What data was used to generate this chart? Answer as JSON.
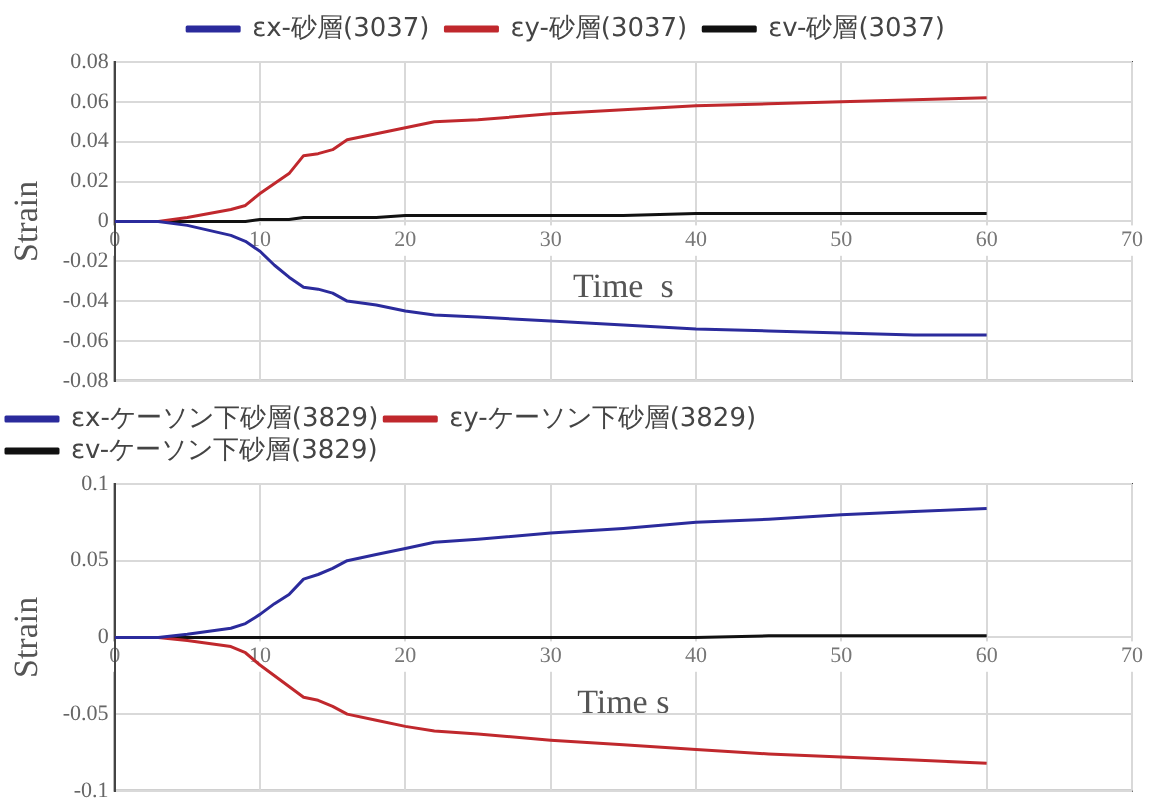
{
  "chart_data": [
    {
      "type": "line",
      "xlabel": "Time  s",
      "ylabel": "Strain",
      "xlim": [
        0,
        70
      ],
      "xticks": [
        0,
        10,
        20,
        30,
        40,
        50,
        60,
        70
      ],
      "ylim": [
        -0.08,
        0.08
      ],
      "yticks": [
        -0.08,
        -0.06,
        -0.04,
        -0.02,
        0,
        0.02,
        0.04,
        0.06,
        0.08
      ],
      "grid": true,
      "legend": "top",
      "marker": "none",
      "line_style": "solid",
      "x": [
        0,
        3,
        5,
        8,
        9,
        10,
        11,
        12,
        13,
        14,
        15,
        16,
        18,
        20,
        22,
        25,
        30,
        35,
        40,
        45,
        50,
        55,
        60
      ],
      "series": [
        {
          "name": "εx-砂層(3037)",
          "color": "#2b2b9c",
          "values": [
            0,
            0,
            -0.002,
            -0.007,
            -0.01,
            -0.015,
            -0.022,
            -0.028,
            -0.033,
            -0.034,
            -0.036,
            -0.04,
            -0.042,
            -0.045,
            -0.047,
            -0.048,
            -0.05,
            -0.052,
            -0.054,
            -0.055,
            -0.056,
            -0.057,
            -0.057
          ]
        },
        {
          "name": "εy-砂層(3037)",
          "color": "#c0282d",
          "values": [
            0,
            0,
            0.002,
            0.006,
            0.008,
            0.014,
            0.019,
            0.024,
            0.033,
            0.034,
            0.036,
            0.041,
            0.044,
            0.047,
            0.05,
            0.051,
            0.054,
            0.056,
            0.058,
            0.059,
            0.06,
            0.061,
            0.062
          ]
        },
        {
          "name": "εv-砂層(3037)",
          "color": "#111111",
          "values": [
            0,
            0,
            0,
            0,
            0,
            0.001,
            0.001,
            0.001,
            0.002,
            0.002,
            0.002,
            0.002,
            0.002,
            0.003,
            0.003,
            0.003,
            0.003,
            0.003,
            0.004,
            0.004,
            0.004,
            0.004,
            0.004
          ]
        }
      ]
    },
    {
      "type": "line",
      "xlabel": "Time s",
      "ylabel": "Strain",
      "xlim": [
        0,
        70
      ],
      "xticks": [
        0,
        10,
        20,
        30,
        40,
        50,
        60,
        70
      ],
      "ylim": [
        -0.1,
        0.1
      ],
      "yticks": [
        -0.1,
        -0.05,
        0,
        0.05,
        0.1
      ],
      "grid": true,
      "legend": "top left",
      "marker": "none",
      "line_style": "solid",
      "x": [
        0,
        3,
        5,
        8,
        9,
        10,
        11,
        12,
        13,
        14,
        15,
        16,
        18,
        20,
        22,
        25,
        30,
        35,
        40,
        45,
        50,
        55,
        60
      ],
      "series": [
        {
          "name": "εx-ケーソン下砂層(3829)",
          "color": "#2b2b9c",
          "values": [
            0,
            0,
            0.002,
            0.006,
            0.009,
            0.015,
            0.022,
            0.028,
            0.038,
            0.041,
            0.045,
            0.05,
            0.054,
            0.058,
            0.062,
            0.064,
            0.068,
            0.071,
            0.075,
            0.077,
            0.08,
            0.082,
            0.084
          ]
        },
        {
          "name": "εy-ケーソン下砂層(3829)",
          "color": "#c0282d",
          "values": [
            0,
            0,
            -0.002,
            -0.006,
            -0.01,
            -0.018,
            -0.025,
            -0.032,
            -0.039,
            -0.041,
            -0.045,
            -0.05,
            -0.054,
            -0.058,
            -0.061,
            -0.063,
            -0.067,
            -0.07,
            -0.073,
            -0.076,
            -0.078,
            -0.08,
            -0.082
          ]
        },
        {
          "name": "εv-ケーソン下砂層(3829)",
          "color": "#111111",
          "values": [
            0,
            0,
            0,
            0,
            0,
            0,
            0,
            0,
            0,
            0,
            0,
            0,
            0,
            0,
            0,
            0,
            0,
            0,
            0,
            0.001,
            0.001,
            0.001,
            0.001
          ]
        }
      ]
    }
  ]
}
